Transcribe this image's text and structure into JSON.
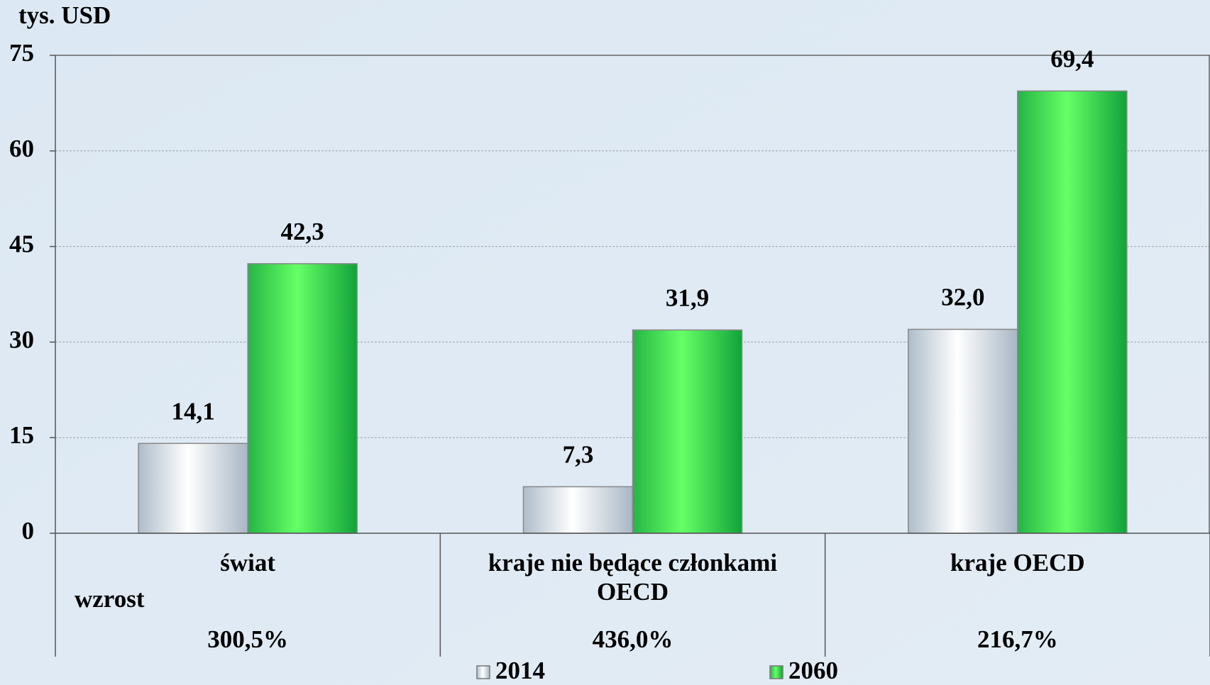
{
  "chart_data": {
    "type": "bar",
    "y_axis_label": "tys. USD",
    "categories": [
      "świat",
      "kraje nie będące członkami OECD",
      "kraje OECD"
    ],
    "series": [
      {
        "name": "2014",
        "color": "#b4c2cf",
        "values": [
          14.1,
          7.3,
          32.0
        ],
        "value_labels": [
          "14,1",
          "7,3",
          "32,0"
        ]
      },
      {
        "name": "2060",
        "color": "#3fdc55",
        "values": [
          42.3,
          31.9,
          69.4
        ],
        "value_labels": [
          "42,3",
          "31,9",
          "69,4"
        ]
      }
    ],
    "growth": {
      "label": "wzrost",
      "values": [
        300.5,
        436.0,
        216.7
      ],
      "value_labels": [
        "300,5%",
        "436,0%",
        "216,7%"
      ]
    },
    "ylim": [
      0,
      75
    ],
    "yticks": [
      0,
      15,
      30,
      45,
      60,
      75
    ],
    "grid": true
  }
}
